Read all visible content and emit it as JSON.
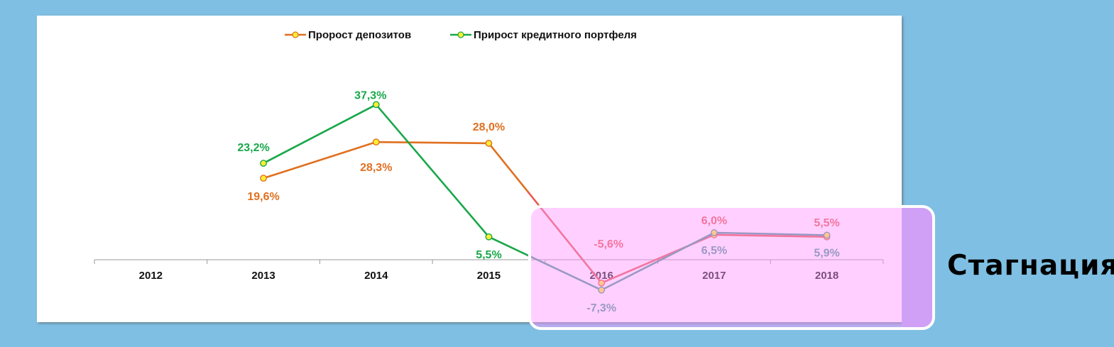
{
  "annotation": {
    "label": "Стагнация"
  },
  "chart_data": {
    "type": "line",
    "categories": [
      "2012",
      "2013",
      "2014",
      "2015",
      "2016",
      "2017",
      "2018"
    ],
    "series": [
      {
        "name": "Пророст депозитов",
        "color": "#e07020",
        "highlight_color": "#ea5a50",
        "values": [
          null,
          19.6,
          28.3,
          28.0,
          -5.6,
          6.0,
          5.5
        ],
        "labels": [
          "",
          "19,6%",
          "28,3%",
          "28,0%",
          "-5,6%",
          "6,0%",
          "5,5%"
        ]
      },
      {
        "name": "Прирост кредитного портфеля",
        "color": "#19a84a",
        "highlight_color": "#4a9a94",
        "values": [
          null,
          23.2,
          37.3,
          5.5,
          -7.3,
          6.5,
          5.9
        ],
        "labels": [
          "",
          "23,2%",
          "37,3%",
          "5,5%",
          "-7,3%",
          "6,5%",
          "5,9%"
        ]
      }
    ],
    "marker_color": "#ffee33",
    "grid": false,
    "legend_position": "top"
  }
}
